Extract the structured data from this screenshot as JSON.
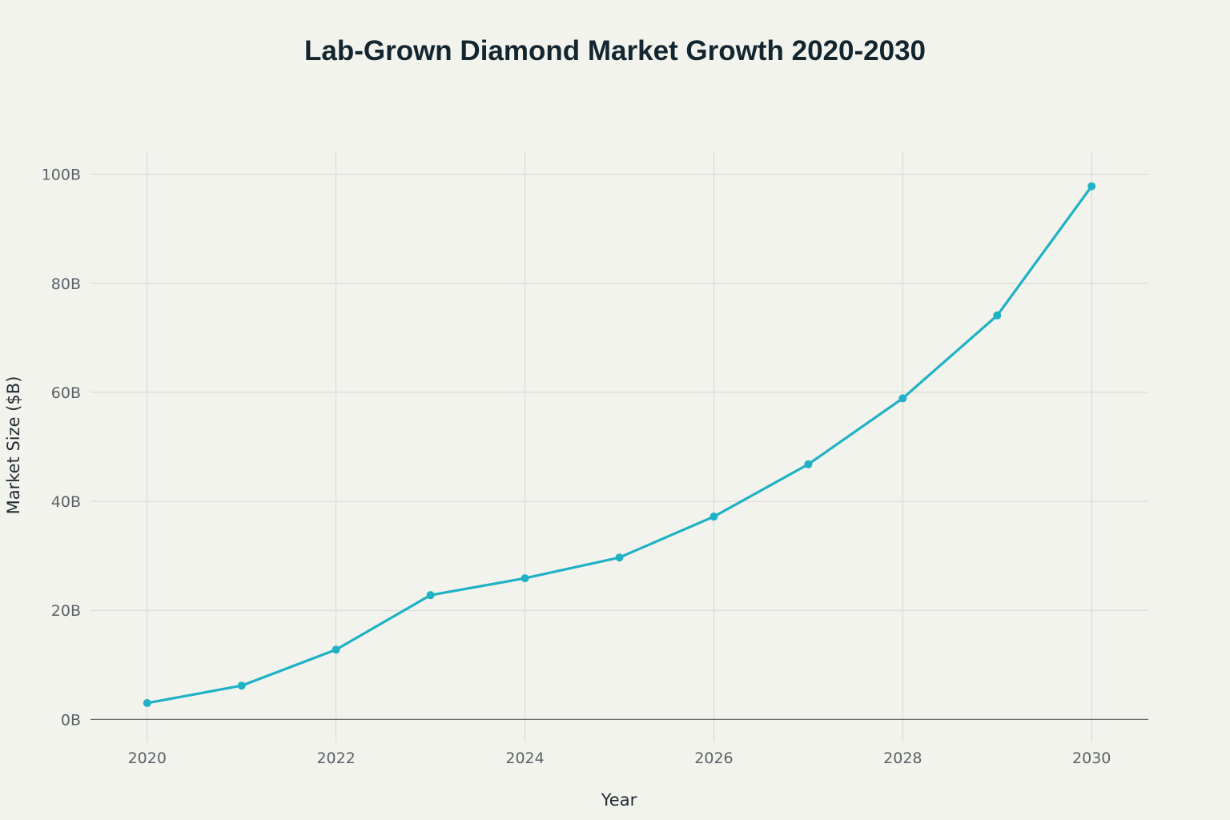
{
  "chart_data": {
    "type": "line",
    "title": "Lab-Grown Diamond Market Growth 2020-2030",
    "xlabel": "Year",
    "ylabel": "Market Size ($B)",
    "x": [
      2020,
      2021,
      2022,
      2023,
      2024,
      2025,
      2026,
      2027,
      2028,
      2029,
      2030
    ],
    "series": [
      {
        "name": "Market Size",
        "color": "#1fb1c4",
        "values": [
          3.0,
          6.2,
          12.8,
          22.8,
          25.9,
          29.7,
          37.2,
          46.8,
          58.9,
          74.1,
          97.8
        ]
      }
    ],
    "xlim": [
      2019.4,
      2030.6
    ],
    "ylim": [
      -4.2,
      104.2
    ],
    "x_ticks": [
      2020,
      2022,
      2024,
      2026,
      2028,
      2030
    ],
    "x_tick_labels": [
      "2020",
      "2022",
      "2024",
      "2026",
      "2028",
      "2030"
    ],
    "y_ticks": [
      0,
      20,
      40,
      60,
      80,
      100
    ],
    "y_tick_labels": [
      "0B",
      "20B",
      "40B",
      "60B",
      "80B",
      "100B"
    ],
    "grid": true,
    "legend": "none"
  }
}
